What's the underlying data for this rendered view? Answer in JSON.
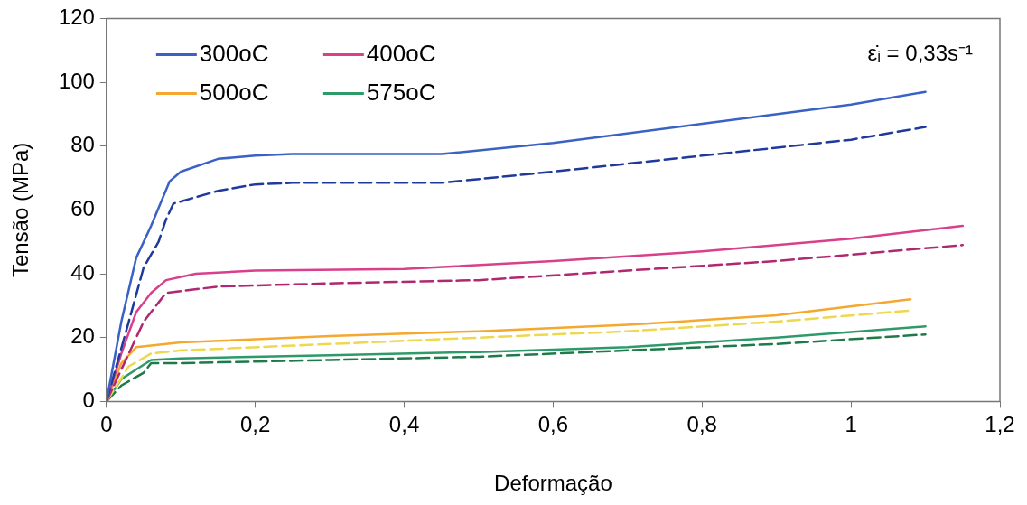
{
  "chart_data": {
    "type": "line",
    "xlabel": "Deformação",
    "ylabel": "Tensão (MPa)",
    "annotations": [
      "ε̇ᵢ = 0,33s⁻¹"
    ],
    "xlim": [
      0,
      1.2
    ],
    "xticks": [
      0,
      {
        "value": 0.2,
        "label": "0,2"
      },
      {
        "value": 0.4,
        "label": "0,4"
      },
      {
        "value": 0.6,
        "label": "0,6"
      },
      {
        "value": 0.8,
        "label": "0,8"
      },
      1,
      {
        "value": 1.2,
        "label": "1,2"
      }
    ],
    "ylim": [
      0,
      120
    ],
    "yticks": [
      0,
      20,
      40,
      60,
      80,
      100,
      120
    ],
    "grid": false,
    "legend": "top left",
    "marker": "none",
    "series": [
      {
        "name": "300oC",
        "color": "#3a62c4",
        "line_style": "solid",
        "x": [
          0,
          0.02,
          0.04,
          0.06,
          0.085,
          0.1,
          0.15,
          0.2,
          0.25,
          0.45,
          0.6,
          0.8,
          1.0,
          1.1
        ],
        "values": [
          0,
          25,
          45,
          55,
          69,
          72,
          76,
          77,
          77.5,
          77.5,
          81,
          87,
          93,
          97
        ]
      },
      {
        "color": "#1f3a9c",
        "line_style": "dashed",
        "x": [
          0,
          0.03,
          0.05,
          0.07,
          0.08,
          0.09,
          0.15,
          0.2,
          0.25,
          0.45,
          0.6,
          0.8,
          1.0,
          1.1
        ],
        "values": [
          0,
          25,
          42,
          50,
          57,
          62,
          66,
          68,
          68.5,
          68.5,
          72,
          77,
          82,
          86
        ]
      },
      {
        "name": "400oC",
        "color": "#d8408c",
        "line_style": "solid",
        "x": [
          0,
          0.02,
          0.04,
          0.06,
          0.08,
          0.12,
          0.2,
          0.4,
          0.6,
          0.8,
          1.0,
          1.15
        ],
        "values": [
          0,
          15,
          28,
          34,
          38,
          40,
          41,
          41.5,
          44,
          47,
          51,
          55
        ]
      },
      {
        "color": "#b02870",
        "line_style": "dashed",
        "x": [
          0,
          0.03,
          0.05,
          0.07,
          0.08,
          0.15,
          0.3,
          0.5,
          0.7,
          0.9,
          1.15
        ],
        "values": [
          0,
          15,
          25,
          31,
          34,
          36,
          37,
          38,
          41,
          44,
          49
        ]
      },
      {
        "name": "500oC",
        "color": "#f5a830",
        "line_style": "solid",
        "x": [
          0,
          0.02,
          0.04,
          0.1,
          0.3,
          0.5,
          0.7,
          0.9,
          1.08
        ],
        "values": [
          0,
          12,
          17,
          18.5,
          20.5,
          22,
          24,
          27,
          32
        ]
      },
      {
        "color": "#eed850",
        "line_style": "dashed",
        "x": [
          0,
          0.03,
          0.06,
          0.1,
          0.3,
          0.5,
          0.7,
          0.9,
          1.08
        ],
        "values": [
          0,
          11,
          15,
          16,
          18,
          20,
          22,
          25,
          28.5
        ]
      },
      {
        "name": "575oC",
        "color": "#2e9a6a",
        "line_style": "solid",
        "x": [
          0,
          0.02,
          0.04,
          0.06,
          0.1,
          0.3,
          0.5,
          0.7,
          0.9,
          1.1
        ],
        "values": [
          0,
          7,
          10,
          13,
          13.5,
          14.5,
          15.5,
          17,
          20,
          23.5
        ]
      },
      {
        "color": "#1f7a4a",
        "line_style": "dashed",
        "x": [
          0,
          0.02,
          0.05,
          0.06,
          0.1,
          0.3,
          0.5,
          0.7,
          0.9,
          1.1
        ],
        "values": [
          0,
          5,
          9,
          12,
          12,
          13,
          14,
          16,
          18,
          21
        ]
      }
    ]
  }
}
